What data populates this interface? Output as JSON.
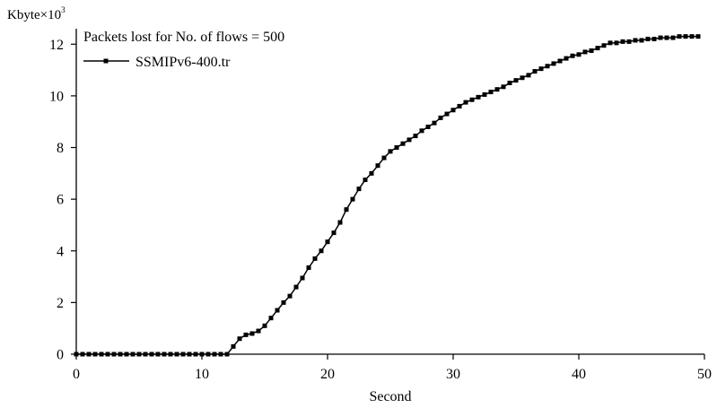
{
  "chart_data": {
    "type": "line",
    "title": "Packets lost for No. of flows = 500",
    "xlabel": "Second",
    "ylabel": "Kbyte×10",
    "ylabel_superscript": "3",
    "xlim": [
      0,
      50
    ],
    "ylim": [
      0,
      12.6
    ],
    "xticks": [
      0,
      10,
      20,
      30,
      40,
      50
    ],
    "yticks": [
      0,
      2,
      4,
      6,
      8,
      10,
      12
    ],
    "grid": false,
    "legend_position": "top-left",
    "series": [
      {
        "name": "SSMIPv6-400.tr",
        "color": "#000000",
        "marker": "square",
        "x": [
          0,
          0.5,
          1,
          1.5,
          2,
          2.5,
          3,
          3.5,
          4,
          4.5,
          5,
          5.5,
          6,
          6.5,
          7,
          7.5,
          8,
          8.5,
          9,
          9.5,
          10,
          10.5,
          11,
          11.5,
          12,
          12.5,
          13,
          13.5,
          14,
          14.5,
          15,
          15.5,
          16,
          16.5,
          17,
          17.5,
          18,
          18.5,
          19,
          19.5,
          20,
          20.5,
          21,
          21.5,
          22,
          22.5,
          23,
          23.5,
          24,
          24.5,
          25,
          25.5,
          26,
          26.5,
          27,
          27.5,
          28,
          28.5,
          29,
          29.5,
          30,
          30.5,
          31,
          31.5,
          32,
          32.5,
          33,
          33.5,
          34,
          34.5,
          35,
          35.5,
          36,
          36.5,
          37,
          37.5,
          38,
          38.5,
          39,
          39.5,
          40,
          40.5,
          41,
          41.5,
          42,
          42.5,
          43,
          43.5,
          44,
          44.5,
          45,
          45.5,
          46,
          46.5,
          47,
          47.5,
          48,
          48.5,
          49,
          49.5
        ],
        "values": [
          0,
          0,
          0,
          0,
          0,
          0,
          0,
          0,
          0,
          0,
          0,
          0,
          0,
          0,
          0,
          0,
          0,
          0,
          0,
          0,
          0,
          0,
          0,
          0,
          0,
          0.3,
          0.6,
          0.75,
          0.8,
          0.9,
          1.1,
          1.4,
          1.7,
          2.0,
          2.25,
          2.6,
          2.95,
          3.35,
          3.7,
          4.0,
          4.35,
          4.7,
          5.1,
          5.6,
          6.0,
          6.4,
          6.75,
          7.0,
          7.3,
          7.6,
          7.85,
          8.0,
          8.15,
          8.3,
          8.45,
          8.65,
          8.8,
          8.95,
          9.15,
          9.3,
          9.45,
          9.6,
          9.75,
          9.85,
          9.95,
          10.05,
          10.15,
          10.25,
          10.35,
          10.5,
          10.6,
          10.7,
          10.8,
          10.95,
          11.05,
          11.15,
          11.25,
          11.35,
          11.45,
          11.55,
          11.6,
          11.7,
          11.75,
          11.85,
          11.95,
          12.05,
          12.05,
          12.1,
          12.1,
          12.15,
          12.15,
          12.2,
          12.2,
          12.25,
          12.25,
          12.25,
          12.3,
          12.3,
          12.3,
          12.3
        ]
      }
    ]
  }
}
